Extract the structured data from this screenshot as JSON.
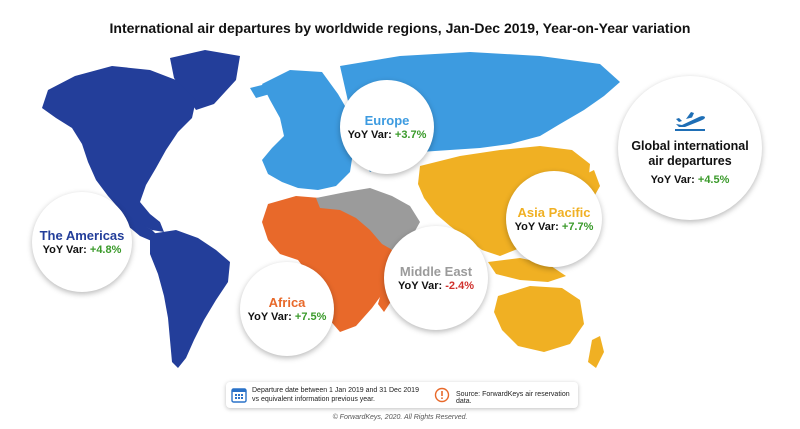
{
  "title": "International air departures by worldwide regions, Jan-Dec 2019, Year-on-Year variation",
  "regions": [
    {
      "name": "Europe",
      "var_label": "YoY Var:",
      "var_value": "+3.7%",
      "color": "#3d9be0"
    },
    {
      "name": "The Americas",
      "var_label": "YoY Var:",
      "var_value": "+4.8%",
      "color": "#233e9a"
    },
    {
      "name": "Asia Pacific",
      "var_label": "YoY Var:",
      "var_value": "+7.7%",
      "color": "#f0b023"
    },
    {
      "name": "Middle East",
      "var_label": "YoY Var:",
      "var_value": "-2.4%",
      "color": "#9b9b9b"
    },
    {
      "name": "Africa",
      "var_label": "YoY Var:",
      "var_value": "+7.5%",
      "color": "#e8692a"
    }
  ],
  "global": {
    "title": "Global international air departures",
    "var_label": "YoY Var:",
    "var_value": "+4.5%",
    "icon": "airplane-takeoff-icon"
  },
  "footer": {
    "date_note": "Departure date between 1 Jan 2019 and 31 Dec 2019 vs equivalent information previous year.",
    "source_note": "Source: ForwardKeys air reservation data.",
    "copyright": "© ForwardKeys, 2020. All Rights Reserved."
  },
  "colors": {
    "positive": "#3a9a2a",
    "negative": "#d0312d"
  }
}
